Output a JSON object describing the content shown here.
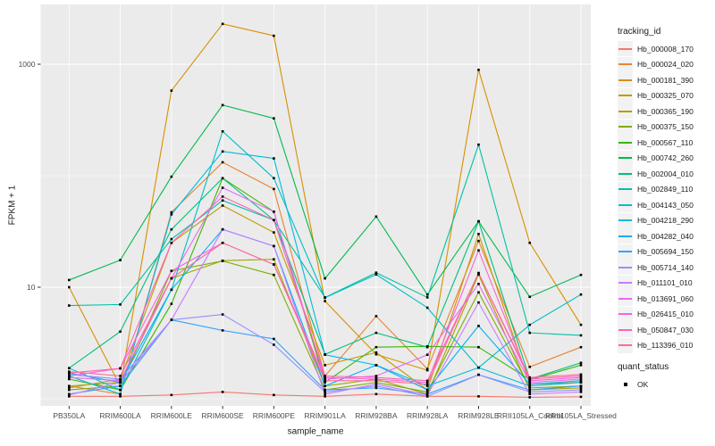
{
  "figure": {
    "background": "#FFFFFF",
    "panel_background": "#EBEBEB",
    "grid_color": "#FFFFFF",
    "tick_color": "#333333",
    "tick_label_color": "#4D4D4D",
    "text_color": "#1A1A1A",
    "point_color": "#000000"
  },
  "chart_data": {
    "type": "line",
    "title": "",
    "xlabel": "sample_name",
    "ylabel": "FPKM + 1",
    "y_scale": "log10",
    "y_major_ticks": [
      10,
      1000
    ],
    "y_minor_gridlines": [
      1,
      100
    ],
    "ylim": [
      0.85,
      3500
    ],
    "grid": true,
    "legend_position": "right",
    "categories": [
      "PB350LA",
      "RRIM600LA",
      "RRIM600LE",
      "RRIM600SE",
      "RRIM600PE",
      "RRIM901LA",
      "RRIM928BA",
      "RRIM928LA",
      "RRIM928LE",
      "RRII105LA_Control",
      "RRII105LA_Stressed"
    ],
    "series": [
      {
        "name": "Hb_000008_170",
        "color": "#F8766D",
        "values": [
          1.05,
          1.05,
          1.08,
          1.15,
          1.08,
          1.05,
          1.1,
          1.05,
          1.05,
          1.03,
          1.04
        ]
      },
      {
        "name": "Hb_000024_020",
        "color": "#EA8331",
        "values": [
          1.3,
          1.1,
          47,
          132,
          76,
          1.6,
          5.5,
          1.85,
          26,
          1.93,
          2.9
        ]
      },
      {
        "name": "Hb_000181_390",
        "color": "#D89000",
        "values": [
          10,
          1.3,
          580,
          2300,
          1800,
          7.5,
          2.5,
          1.8,
          890,
          25,
          4.6
        ]
      },
      {
        "name": "Hb_000325_070",
        "color": "#C09B00",
        "values": [
          1.25,
          1.5,
          25,
          54,
          31,
          2.0,
          2.6,
          1.2,
          30,
          1.35,
          1.4
        ]
      },
      {
        "name": "Hb_000365_190",
        "color": "#A3A500",
        "values": [
          1.3,
          1.4,
          12,
          17.3,
          17.8,
          1.3,
          1.5,
          1.1,
          13,
          1.2,
          1.25
        ]
      },
      {
        "name": "Hb_000375_150",
        "color": "#7CAE00",
        "values": [
          1.2,
          1.3,
          14,
          17.2,
          12.9,
          1.2,
          1.4,
          1.15,
          9,
          1.25,
          1.3
        ]
      },
      {
        "name": "Hb_000567_110",
        "color": "#39B600",
        "values": [
          1.5,
          1.2,
          7.1,
          95,
          47.6,
          1.4,
          2.9,
          2.95,
          2.9,
          1.48,
          2.0
        ]
      },
      {
        "name": "Hb_000742_260",
        "color": "#00BB4E",
        "values": [
          11.6,
          17.5,
          98,
          430,
          327,
          12,
          43,
          8.6,
          39,
          8.2,
          12.9
        ]
      },
      {
        "name": "Hb_002004_010",
        "color": "#00BF7D",
        "values": [
          1.88,
          4.0,
          33,
          95,
          40,
          2.5,
          3.9,
          2.9,
          39,
          1.5,
          2.1
        ]
      },
      {
        "name": "Hb_002849_110",
        "color": "#00C1A3",
        "values": [
          6.85,
          7.0,
          27,
          60,
          40,
          8.1,
          13.5,
          8.1,
          190,
          3.9,
          3.7
        ]
      },
      {
        "name": "Hb_004143_050",
        "color": "#00BFC4",
        "values": [
          1.88,
          1.2,
          9.5,
          250,
          95,
          8.05,
          13.0,
          6.55,
          1.9,
          4.6,
          8.6
        ]
      },
      {
        "name": "Hb_004218_290",
        "color": "#00BAE0",
        "values": [
          1.6,
          1.1,
          45,
          165,
          143,
          2.48,
          2.0,
          1.3,
          1.9,
          1.3,
          1.4
        ]
      },
      {
        "name": "Hb_004282_040",
        "color": "#00B0F6",
        "values": [
          1.7,
          1.4,
          9.5,
          33,
          23.4,
          1.3,
          2.0,
          1.2,
          4.5,
          1.35,
          1.45
        ]
      },
      {
        "name": "Hb_005694_150",
        "color": "#35A2FF",
        "values": [
          1.1,
          1.3,
          5.1,
          4.1,
          3.44,
          1.2,
          1.25,
          1.1,
          1.64,
          1.2,
          1.3
        ]
      },
      {
        "name": "Hb_005714_140",
        "color": "#9590FF",
        "values": [
          1.65,
          1.5,
          5.1,
          5.7,
          3.05,
          1.15,
          1.3,
          1.05,
          1.64,
          1.15,
          1.2
        ]
      },
      {
        "name": "Hb_011101_010",
        "color": "#C77CFF",
        "values": [
          1.08,
          1.4,
          5.1,
          33,
          23.4,
          1.1,
          1.35,
          1.08,
          7.3,
          1.1,
          1.15
        ]
      },
      {
        "name": "Hb_013691_060",
        "color": "#E76BF3",
        "values": [
          1.55,
          1.45,
          12,
          78,
          47.6,
          1.5,
          1.6,
          2.48,
          10.7,
          1.4,
          1.5
        ]
      },
      {
        "name": "Hb_026415_010",
        "color": "#FA62DB",
        "values": [
          1.6,
          1.87,
          14,
          25,
          16,
          1.55,
          1.5,
          1.4,
          21.4,
          1.45,
          1.55
        ]
      },
      {
        "name": "Hb_050847_030",
        "color": "#FF62BC",
        "values": [
          1.7,
          1.87,
          25,
          65,
          40,
          1.6,
          1.55,
          1.45,
          13.4,
          1.5,
          1.6
        ]
      },
      {
        "name": "Hb_113396_010",
        "color": "#FF6A98",
        "values": [
          1.75,
          1.6,
          12,
          25,
          16,
          1.45,
          1.45,
          1.35,
          13.4,
          1.55,
          1.65
        ]
      }
    ]
  },
  "legend": {
    "tracking_title": "tracking_id",
    "quant_title": "quant_status",
    "quant_items": [
      {
        "label": "OK"
      }
    ]
  }
}
